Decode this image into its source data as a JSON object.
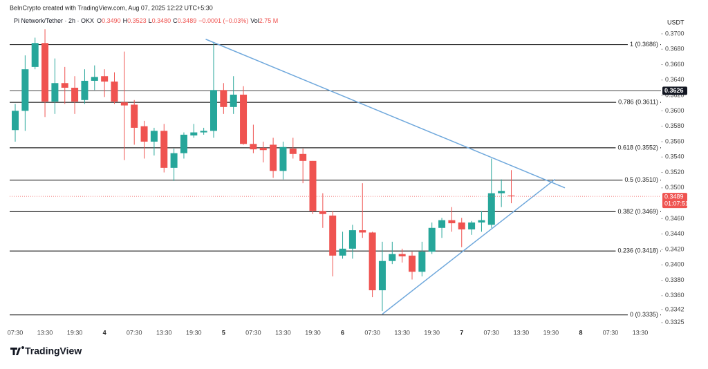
{
  "chart_data": {
    "type": "candlestick",
    "credit": "BeInCrypto created with TradingView.com, Aug 07, 2025 12:22 UTC+5:30",
    "symbol": "Pi Network/Tether · 2h · OKX",
    "ohlc_legend": [
      {
        "key": "O",
        "value": "0.3490"
      },
      {
        "key": "H",
        "value": "0.3523"
      },
      {
        "key": "L",
        "value": "0.3480"
      },
      {
        "key": "C",
        "value": "0.3489"
      }
    ],
    "change": "−0.0001 (−0.03%)",
    "volume_key": "Vol",
    "volume": "2.75 M",
    "unit": "USDT",
    "brand": "TradingView",
    "up_color": "#26a69a",
    "down_color": "#ef5350",
    "categories": [
      "07:30",
      null,
      null,
      "13:30",
      null,
      null,
      "19:30",
      null,
      null,
      "4",
      null,
      null,
      "07:30",
      null,
      null,
      "13:30",
      null,
      null,
      "19:30",
      null,
      null,
      "5",
      null,
      null,
      "07:30",
      null,
      null,
      "13:30",
      null,
      null,
      "19:30",
      null,
      null,
      "6",
      null,
      null,
      "07:30",
      null,
      null,
      "13:30",
      null,
      null,
      "19:30",
      null,
      null,
      "7",
      null,
      null,
      "07:30",
      null,
      null,
      "13:30",
      null,
      null,
      "19:30",
      null,
      null,
      "8",
      null,
      null,
      "07:30",
      null,
      null,
      "13:30"
    ],
    "open": [
      0.3575,
      0.36,
      0.3657,
      0.3688,
      0.3612,
      0.3636,
      0.363,
      0.3614,
      0.3639,
      0.3645,
      0.3638,
      0.3611,
      0.3608,
      0.358,
      0.356,
      0.3574,
      0.3526,
      0.3545,
      0.3568,
      0.3572,
      0.3574,
      0.3627,
      0.3605,
      0.3621,
      0.3557,
      0.3552,
      0.3556,
      0.3522,
      0.3551,
      0.3544,
      0.3535,
      0.347,
      0.3464,
      0.3412,
      0.3421,
      0.3445,
      0.3442,
      0.3367,
      0.3405,
      0.3414,
      0.3412,
      0.3391,
      0.3417,
      0.3448,
      0.3458,
      0.3455,
      0.3446,
      0.3455,
      0.3452,
      0.3493,
      0.349,
      null,
      null,
      null,
      null,
      null,
      null,
      null,
      null,
      null,
      null,
      null,
      null,
      null
    ],
    "high": [
      0.3609,
      0.3672,
      0.3695,
      0.3706,
      0.3668,
      0.3657,
      0.3645,
      0.3654,
      0.3659,
      0.3654,
      0.365,
      0.3677,
      0.3614,
      0.3587,
      0.3578,
      0.3583,
      0.3551,
      0.3572,
      0.3583,
      0.3578,
      0.3688,
      0.3636,
      0.3645,
      0.3632,
      0.3582,
      0.356,
      0.3565,
      0.356,
      0.3565,
      0.3551,
      0.3535,
      0.3493,
      0.347,
      0.3443,
      0.3452,
      0.3506,
      0.3443,
      0.343,
      0.343,
      0.3421,
      0.3417,
      0.343,
      0.3455,
      0.3461,
      0.3475,
      0.3461,
      0.3457,
      0.347,
      0.3538,
      0.3511,
      0.3523,
      null,
      null,
      null,
      null,
      null,
      null,
      null,
      null,
      null,
      null,
      null,
      null,
      null
    ],
    "low": [
      0.356,
      0.3574,
      0.3654,
      0.3592,
      0.3596,
      0.3609,
      0.3596,
      0.3609,
      0.3627,
      0.3618,
      0.3609,
      0.3536,
      0.3556,
      0.3538,
      0.3542,
      0.352,
      0.3509,
      0.3538,
      0.3565,
      0.3569,
      0.3565,
      0.3596,
      0.3596,
      0.3556,
      0.3545,
      0.3533,
      0.3513,
      0.3511,
      0.3538,
      0.3506,
      0.3466,
      0.3448,
      0.3385,
      0.3408,
      0.3408,
      0.3435,
      0.3358,
      0.334,
      0.3401,
      0.3403,
      0.3381,
      0.3385,
      0.3414,
      0.3435,
      0.3443,
      0.3423,
      0.3439,
      0.3443,
      0.3448,
      0.3475,
      0.348,
      null,
      null,
      null,
      null,
      null,
      null,
      null,
      null,
      null,
      null,
      null,
      null,
      null
    ],
    "close": [
      0.36,
      0.3654,
      0.3688,
      0.3612,
      0.3636,
      0.363,
      0.3612,
      0.3639,
      0.3644,
      0.3638,
      0.3612,
      0.3607,
      0.3578,
      0.356,
      0.3574,
      0.3526,
      0.3545,
      0.3569,
      0.3572,
      0.3574,
      0.3627,
      0.3605,
      0.3621,
      0.3557,
      0.355,
      0.3549,
      0.3522,
      0.3553,
      0.3544,
      0.3535,
      0.347,
      0.3466,
      0.3412,
      0.3421,
      0.3445,
      0.3442,
      0.3367,
      0.3405,
      0.3414,
      0.3411,
      0.3391,
      0.3417,
      0.3448,
      0.3458,
      0.3454,
      0.3446,
      0.3455,
      0.3458,
      0.3493,
      0.3496,
      0.3489,
      null,
      null,
      null,
      null,
      null,
      null,
      null,
      null,
      null,
      null,
      null,
      null,
      null
    ],
    "ylim": [
      0.3315,
      0.3717
    ],
    "yticks": [
      {
        "value": 0.37,
        "label": "0.3700"
      },
      {
        "value": 0.368,
        "label": "0.3680"
      },
      {
        "value": 0.366,
        "label": "0.3660"
      },
      {
        "value": 0.364,
        "label": "0.3640"
      },
      {
        "value": 0.362,
        "label": "0.3620"
      },
      {
        "value": 0.36,
        "label": "0.3600"
      },
      {
        "value": 0.358,
        "label": "0.3580"
      },
      {
        "value": 0.356,
        "label": "0.3560"
      },
      {
        "value": 0.354,
        "label": "0.3540"
      },
      {
        "value": 0.352,
        "label": "0.3520"
      },
      {
        "value": 0.35,
        "label": "0.3500"
      },
      {
        "value": 0.346,
        "label": "0.3460"
      },
      {
        "value": 0.344,
        "label": "0.3440"
      },
      {
        "value": 0.342,
        "label": "0.3420"
      },
      {
        "value": 0.34,
        "label": "0.3400"
      },
      {
        "value": 0.338,
        "label": "0.3380"
      },
      {
        "value": 0.336,
        "label": "0.3360"
      },
      {
        "value": 0.3342,
        "label": "0.3342"
      },
      {
        "value": 0.3325,
        "label": "0.3325"
      }
    ],
    "fib_levels": [
      {
        "value": 0.3686,
        "label": "1 (0.3686)"
      },
      {
        "value": 0.3611,
        "label": "0.786 (0.3611)"
      },
      {
        "value": 0.3552,
        "label": "0.618 (0.3552)"
      },
      {
        "value": 0.351,
        "label": "0.5 (0.3510)"
      },
      {
        "value": 0.3469,
        "label": "0.382 (0.3469)"
      },
      {
        "value": 0.3418,
        "label": "0.236 (0.3418)"
      },
      {
        "value": 0.3335,
        "label": "0 (0.3335)"
      }
    ],
    "marker_line": {
      "value": 0.3626,
      "label": "0.3626"
    },
    "current_price": {
      "value": 0.3489,
      "label": "0.3489",
      "countdown": "01:07:51"
    },
    "trendline_color": "#6fa8dc",
    "trendlines": [
      {
        "x": [
          19.2,
          55.4
        ],
        "y": [
          0.3693,
          0.35
        ]
      },
      {
        "x": [
          37,
          54.4
        ],
        "y": [
          0.3336,
          0.3511
        ]
      }
    ]
  }
}
